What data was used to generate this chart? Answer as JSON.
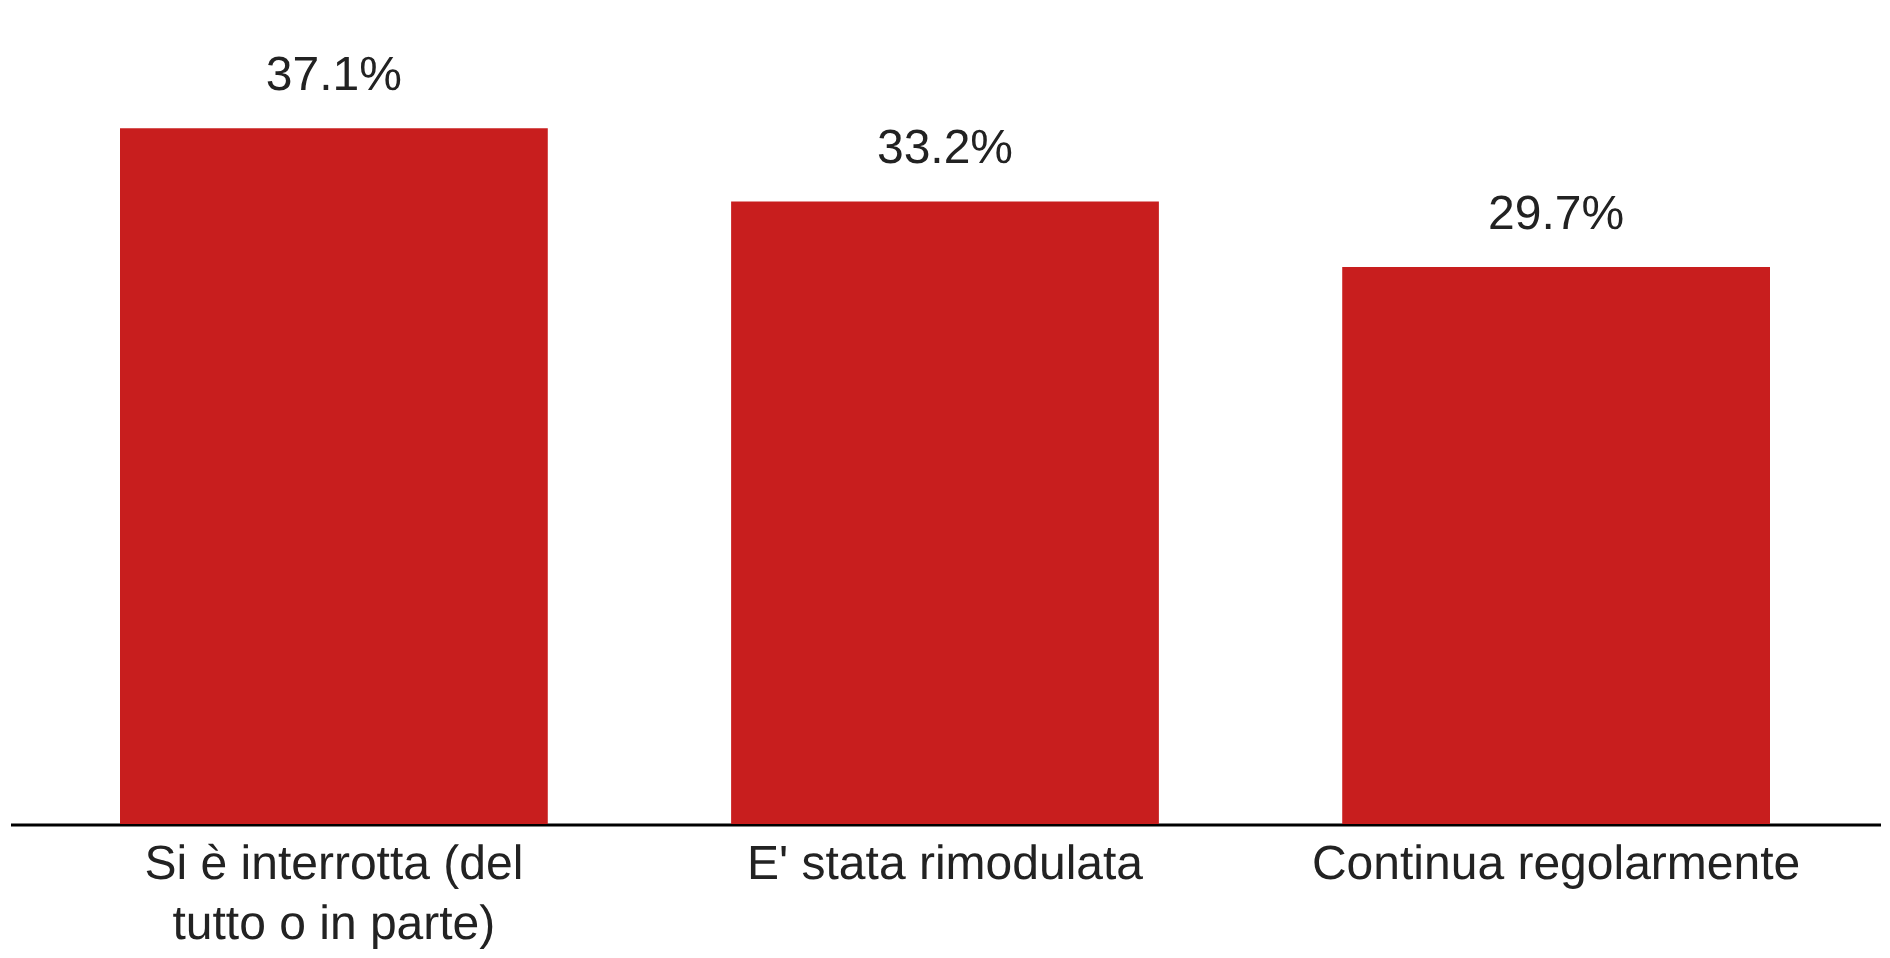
{
  "chart_data": {
    "type": "bar",
    "categories": [
      "Si è interrotta (del tutto o in parte)",
      "E' stata rimodulata",
      "Continua regolarmente"
    ],
    "values": [
      37.1,
      33.2,
      29.7
    ],
    "color": "#c81e1e",
    "value_labels": [
      "37.1%",
      "33.2%",
      "29.7%"
    ],
    "grid": false
  }
}
